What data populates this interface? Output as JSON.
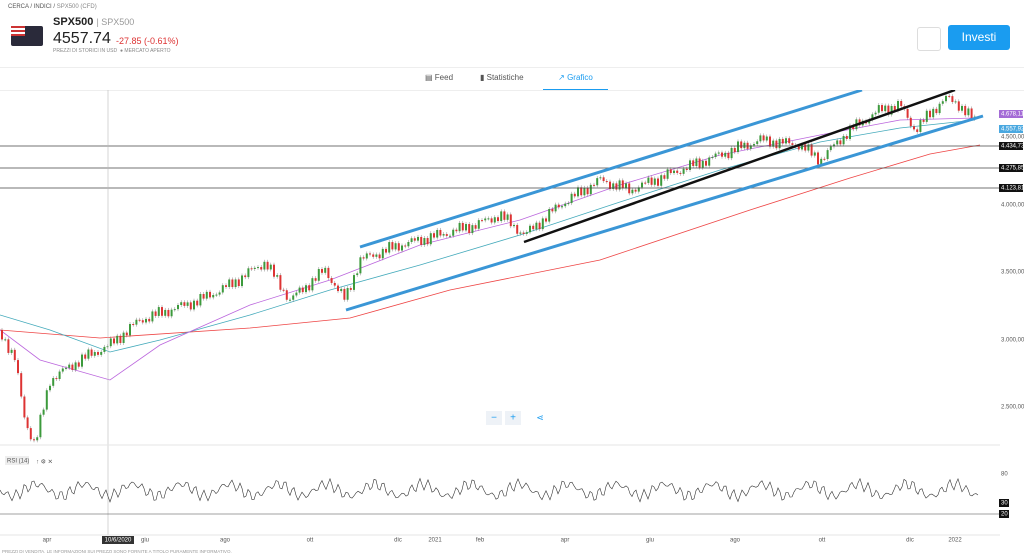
{
  "header": {
    "breadcrumb": [
      "CERCA",
      "INDICI",
      "SPX500 (CFD)"
    ],
    "symbol": "SPX500",
    "subsymbol": "SPX500",
    "price": "4557.74",
    "change": "-27.85 (-0.61%)",
    "price_note": "PREZZI DI STORICI IN USD",
    "market_status": "MERCATO APERTO",
    "invest_button": "Investi"
  },
  "tabs": [
    "Feed",
    "Statistiche",
    "Grafico"
  ],
  "price_axis": [
    "4.678,11",
    "4.557,92",
    "4.500,00",
    "4.434,73",
    "4.275,85",
    "4.123,81",
    "4.000,00",
    "3.500,00",
    "3.000,00",
    "2.500,00"
  ],
  "time_axis": [
    "apr",
    "10/6/2020",
    "giu",
    "ago",
    "ott",
    "dic",
    "2021",
    "feb",
    "apr",
    "giu",
    "ago",
    "ott",
    "dic",
    "2022"
  ],
  "rsi": {
    "label": "RSI (14)",
    "axis": [
      "80",
      "30",
      "20"
    ]
  },
  "zoom": [
    "−",
    "+"
  ],
  "footer": "PREZZI DI VENDITA. LE INFORMAZIONI SUI PREZZI SONO FORNITE A TITOLO PURAMENTE INFORMATIVO."
}
